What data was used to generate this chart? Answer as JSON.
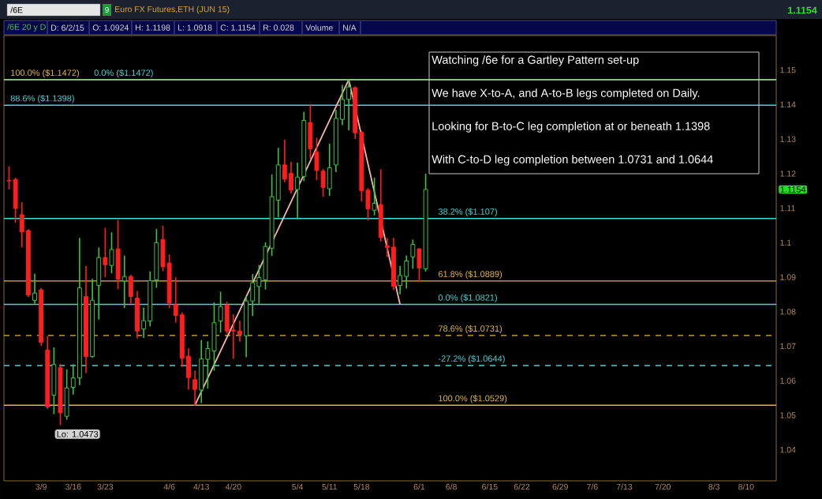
{
  "chart_data": {
    "type": "candlestick",
    "title": "Euro FX Futures,ETH (JUN 15)",
    "categories": [
      null,
      null,
      null,
      null,
      null,
      "3/9",
      null,
      null,
      null,
      null,
      "3/16",
      null,
      null,
      null,
      null,
      "3/23",
      null,
      null,
      null,
      null,
      null,
      null,
      null,
      null,
      null,
      "4/6",
      null,
      null,
      null,
      null,
      "4/13",
      null,
      null,
      null,
      null,
      "4/20",
      null,
      null,
      null,
      null,
      null,
      null,
      null,
      null,
      null,
      "5/4",
      null,
      null,
      null,
      null,
      "5/11",
      null,
      null,
      null,
      null,
      "5/18",
      null,
      null,
      null,
      null,
      null,
      null,
      null,
      null,
      "6/1",
      null,
      null,
      null,
      null,
      "6/8",
      null,
      null,
      null,
      null,
      null,
      "6/15",
      null,
      null,
      null,
      null,
      "6/22",
      null,
      null,
      null,
      null,
      null,
      "6/29",
      null,
      null,
      null,
      null,
      "7/6",
      null,
      null,
      null,
      null,
      "7/13",
      null,
      null,
      null,
      null,
      null,
      "7/20",
      null,
      null,
      null,
      null,
      null,
      null,
      null,
      "8/3",
      null,
      null,
      null,
      null,
      "8/10",
      null,
      null,
      null,
      null
    ],
    "ohlc": [
      [
        1.118,
        1.1219,
        1.1156,
        1.1179
      ],
      [
        1.1183,
        1.1186,
        1.106,
        1.1099
      ],
      [
        1.1081,
        1.1115,
        1.0988,
        1.1031
      ],
      [
        1.1035,
        1.1037,
        1.0844,
        1.0848
      ],
      [
        1.0833,
        1.0908,
        1.0825,
        1.0854
      ],
      [
        1.0863,
        1.0867,
        1.0703,
        1.0711
      ],
      [
        1.0689,
        1.0728,
        1.052,
        1.0524
      ],
      [
        1.0558,
        1.0695,
        1.0505,
        1.0647
      ],
      [
        1.0638,
        1.0647,
        1.0473,
        1.0507
      ],
      [
        1.0497,
        1.0631,
        1.0489,
        1.0579
      ],
      [
        1.0581,
        1.0646,
        1.0562,
        1.0608
      ],
      [
        1.0608,
        1.1012,
        1.0589,
        1.0869
      ],
      [
        1.0844,
        1.0931,
        1.0624,
        1.067
      ],
      [
        1.067,
        1.0893,
        1.0669,
        1.0833
      ],
      [
        1.0876,
        1.0984,
        1.0779,
        1.0957
      ],
      [
        1.0957,
        1.1041,
        1.0902,
        1.0936
      ],
      [
        1.0934,
        1.1028,
        1.0913,
        1.098
      ],
      [
        1.0982,
        1.1064,
        1.0867,
        1.0894
      ],
      [
        1.0889,
        1.0961,
        1.0812,
        1.0902
      ],
      [
        1.0902,
        1.0905,
        1.0825,
        1.0844
      ],
      [
        1.0839,
        1.0858,
        1.0724,
        1.0744
      ],
      [
        1.075,
        1.081,
        1.0726,
        1.0774
      ],
      [
        1.0773,
        1.0915,
        1.0759,
        1.089
      ],
      [
        1.0892,
        1.1038,
        1.0871,
        1.1
      ],
      [
        1.1009,
        1.1047,
        1.0919,
        1.093
      ],
      [
        1.0941,
        1.0964,
        1.0812,
        1.0825
      ],
      [
        1.082,
        1.0898,
        1.077,
        1.0789
      ],
      [
        1.0791,
        1.0796,
        1.0642,
        1.0665
      ],
      [
        1.0671,
        1.0692,
        1.0576,
        1.0609
      ],
      [
        1.0603,
        1.0628,
        1.0529,
        1.0575
      ],
      [
        1.0573,
        1.0716,
        1.0537,
        1.0663
      ],
      [
        1.0662,
        1.0712,
        1.0579,
        1.0693
      ],
      [
        1.0686,
        1.0825,
        1.0631,
        1.0768
      ],
      [
        1.0773,
        1.0856,
        1.0741,
        1.0815
      ],
      [
        1.0819,
        1.0827,
        1.0738,
        1.0744
      ],
      [
        1.0747,
        1.0791,
        1.0665,
        1.0744
      ],
      [
        1.0744,
        1.0772,
        1.0715,
        1.0734
      ],
      [
        1.073,
        1.0844,
        1.067,
        1.0831
      ],
      [
        1.0831,
        1.0907,
        1.0789,
        1.0884
      ],
      [
        1.0873,
        1.0934,
        1.0825,
        1.0899
      ],
      [
        1.0892,
        1.0999,
        1.0866,
        1.0989
      ],
      [
        1.0984,
        1.1196,
        1.0963,
        1.1133
      ],
      [
        1.1123,
        1.1273,
        1.1075,
        1.1225
      ],
      [
        1.1225,
        1.1296,
        1.1177,
        1.1184
      ],
      [
        1.1201,
        1.1232,
        1.1144,
        1.1152
      ],
      [
        1.1154,
        1.123,
        1.107,
        1.119
      ],
      [
        1.1192,
        1.1377,
        1.118,
        1.1354
      ],
      [
        1.1348,
        1.1398,
        1.1245,
        1.1272
      ],
      [
        1.1262,
        1.1302,
        1.1183,
        1.1209
      ],
      [
        1.1207,
        1.1212,
        1.1135,
        1.116
      ],
      [
        1.1156,
        1.1285,
        1.1137,
        1.1217
      ],
      [
        1.1225,
        1.1383,
        1.1206,
        1.136
      ],
      [
        1.1357,
        1.1455,
        1.1342,
        1.1415
      ],
      [
        1.1415,
        1.1472,
        1.1327,
        1.1451
      ],
      [
        1.1449,
        1.1451,
        1.1302,
        1.1318
      ],
      [
        1.132,
        1.1322,
        1.1121,
        1.115
      ],
      [
        1.1152,
        1.1156,
        1.1066,
        1.1098
      ],
      [
        1.1094,
        1.1186,
        1.1081,
        1.1114
      ],
      [
        1.111,
        1.1211,
        1.1005,
        1.1015
      ],
      [
        1.0991,
        1.1012,
        1.096,
        1.0986
      ],
      [
        1.0987,
        1.1012,
        1.0865,
        1.0873
      ],
      [
        1.0876,
        1.0931,
        1.0852,
        1.0905
      ],
      [
        1.0902,
        1.0961,
        1.0869,
        1.0947
      ],
      [
        1.0959,
        1.1007,
        1.0926,
        1.0995
      ],
      [
        1.0982,
        1.0982,
        1.0889,
        1.0926
      ],
      [
        1.0924,
        1.1198,
        1.0918,
        1.1154
      ],
      null,
      null,
      null,
      null,
      null,
      null,
      null,
      null,
      null,
      null,
      null,
      null,
      null,
      null,
      null,
      null,
      null,
      null,
      null,
      null,
      null,
      null,
      null,
      null,
      null,
      null,
      null,
      null,
      null,
      null,
      null,
      null,
      null,
      null,
      null,
      null,
      null,
      null,
      null,
      null,
      null,
      null,
      null,
      null,
      null,
      null,
      null,
      null,
      null,
      null,
      null,
      null,
      null,
      null
    ],
    "colors": [
      "#ff1e1e",
      "#ff1e1e",
      "#ff1e1e",
      "#ff1e1e",
      "#3cc43c",
      "#ff1e1e",
      "#ff1e1e",
      "#3cc43c",
      "#ff1e1e",
      "#3cc43c",
      "#3cc43c",
      "#3cc43c",
      "#ff1e1e",
      "#3cc43c",
      "#3cc43c",
      "#ff1e1e",
      "#3cc43c",
      "#ff1e1e",
      "#3cc43c",
      "#ff1e1e",
      "#ff1e1e",
      "#3cc43c",
      "#3cc43c",
      "#3cc43c",
      "#ff1e1e",
      "#ff1e1e",
      "#ff1e1e",
      "#ff1e1e",
      "#ff1e1e",
      "#ff1e1e",
      "#3cc43c",
      "#3cc43c",
      "#3cc43c",
      "#3cc43c",
      "#ff1e1e",
      "#ff1e1e",
      "#ff1e1e",
      "#3cc43c",
      "#3cc43c",
      "#3cc43c",
      "#3cc43c",
      "#3cc43c",
      "#3cc43c",
      "#ff1e1e",
      "#ff1e1e",
      "#3cc43c",
      "#3cc43c",
      "#ff1e1e",
      "#ff1e1e",
      "#ff1e1e",
      "#3cc43c",
      "#3cc43c",
      "#3cc43c",
      "#3cc43c",
      "#ff1e1e",
      "#ff1e1e",
      "#ff1e1e",
      "#3cc43c",
      "#ff1e1e",
      "#ff1e1e",
      "#ff1e1e",
      "#3cc43c",
      "#3cc43c",
      "#3cc43c",
      "#ff1e1e",
      "#3cc43c",
      null,
      null,
      null,
      null,
      null,
      null,
      null,
      null,
      null,
      null,
      null,
      null,
      null,
      null,
      null,
      null,
      null,
      null,
      null,
      null,
      null,
      null,
      null,
      null,
      null,
      null,
      null,
      null,
      null,
      null,
      null,
      null,
      null,
      null,
      null,
      null,
      null,
      null,
      null,
      null,
      null,
      null,
      null,
      null,
      null,
      null,
      null,
      null,
      null,
      null,
      null,
      null,
      null,
      null
    ],
    "series": [
      {
        "type": "line",
        "color": "#f5b5ae",
        "values": [
          null,
          null,
          null,
          null,
          null,
          null,
          null,
          null,
          null,
          null,
          null,
          null,
          null,
          null,
          null,
          null,
          null,
          null,
          null,
          null,
          null,
          null,
          null,
          null,
          null,
          null,
          null,
          null,
          null,
          1.0529,
          null,
          null,
          null,
          null,
          null,
          null,
          null,
          null,
          null,
          null,
          null,
          null,
          null,
          null,
          null,
          null,
          null,
          null,
          null,
          null,
          null,
          null,
          null,
          1.1472,
          null,
          null,
          null,
          null,
          null,
          null,
          null,
          1.0821,
          null,
          null,
          null,
          null,
          null,
          null,
          null,
          null,
          null,
          null,
          null,
          null,
          null,
          null,
          null,
          null,
          null,
          null,
          null,
          null,
          null,
          null,
          null,
          null,
          null,
          null,
          null,
          null,
          null,
          null,
          null,
          null,
          null,
          null,
          null,
          null,
          null,
          null,
          null,
          null,
          null,
          null,
          null,
          null,
          null,
          null,
          null,
          null,
          null,
          null,
          null,
          null,
          null,
          null,
          null,
          null,
          null,
          null
        ]
      }
    ],
    "ylim": [
      1.031,
      1.16
    ],
    "yticks": [
      1.04,
      1.05,
      1.06,
      1.07,
      1.08,
      1.09,
      1.1,
      1.11,
      1.12,
      1.13,
      1.14,
      1.15
    ],
    "ref_lines": [
      {
        "axis": "y",
        "value": 1.1472,
        "label": "100.0% ($1.1472)",
        "color": "#e2b83a"
      },
      {
        "axis": "y",
        "value": 1.1472,
        "label": "0.0% ($1.1472)",
        "color": "#3fd8d8"
      },
      {
        "axis": "y",
        "value": 1.1398,
        "label": "88.6% ($1.1398)",
        "color": "#3fd8d8"
      },
      {
        "axis": "y",
        "value": 1.107,
        "label": "38.2% ($1.107)",
        "color": "#3fd8d8"
      },
      {
        "axis": "y",
        "value": 1.0889,
        "label": "61.8% ($1.0889)",
        "color": "#e2b83a"
      },
      {
        "axis": "y",
        "value": 1.0821,
        "label": "0.0% ($1.0821)",
        "color": "#3fd8d8"
      },
      {
        "axis": "y",
        "value": 1.0731,
        "label": "78.6% ($1.0731)",
        "color": "#e2b83a",
        "line_style": "dashed"
      },
      {
        "axis": "y",
        "value": 1.0644,
        "label": "-27.2% ($1.0644)",
        "color": "#3fd8d8",
        "line_style": "dashed"
      },
      {
        "axis": "y",
        "value": 1.0529,
        "label": "100.0% ($1.0529)",
        "color": "#e2b83a"
      }
    ],
    "annotations": [
      "Lo: 1.0473",
      "1.1154",
      "Watching /6e for a Gartley Pattern set-up",
      "We have X-to-A, and A-to-B legs completed on Daily.",
      "Looking for B-to-C leg completion at or beneath 1.1398",
      "With C-to-D leg completion between 1.0731 and 1.0644",
      "/6E",
      "9",
      "/6E 20 y D",
      "D: 6/2/15",
      "O: 1.0924",
      "H: 1.1198",
      "L: 1.0918",
      "C: 1.1154",
      "R: 0.028",
      "Volume",
      "N/A",
      "1.1154"
    ]
  }
}
